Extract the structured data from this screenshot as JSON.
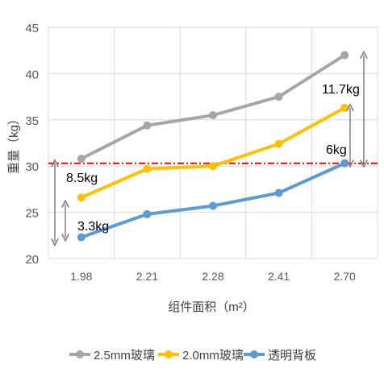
{
  "chart_data": {
    "type": "line",
    "categories": [
      "1.98",
      "2.21",
      "2.28",
      "2.41",
      "2.70"
    ],
    "series": [
      {
        "name": "2.5mm玻璃",
        "values": [
          30.8,
          34.4,
          35.5,
          37.5,
          42.0
        ],
        "color": "#a6a6a6"
      },
      {
        "name": "2.0mm玻璃",
        "values": [
          26.6,
          29.7,
          30.0,
          32.4,
          36.3
        ],
        "color": "#ffc000"
      },
      {
        "name": "透明背板",
        "values": [
          22.3,
          24.8,
          25.7,
          27.1,
          30.3
        ],
        "color": "#5b9bd5"
      }
    ],
    "reference_line": {
      "y": 30.3,
      "color": "#ff0000",
      "style": "dash-dot"
    },
    "annotations": [
      {
        "text": "8.5kg",
        "x_index": 0,
        "from": 21.8,
        "to": 30.3
      },
      {
        "text": "3.3kg",
        "x_index": 0,
        "from": 22.3,
        "to": 25.9
      },
      {
        "text": "11.7kg",
        "x_index": 4,
        "from": 30.3,
        "to": 42.0
      },
      {
        "text": "6kg",
        "x_index": 4,
        "from": 30.3,
        "to": 36.3
      }
    ],
    "xlabel": "组件面积（m²）",
    "ylabel": "重量（kg）",
    "ylim": [
      20,
      45
    ],
    "yticks": [
      "20",
      "25",
      "30",
      "35",
      "40",
      "45"
    ],
    "grid": true,
    "legend_position": "bottom"
  }
}
